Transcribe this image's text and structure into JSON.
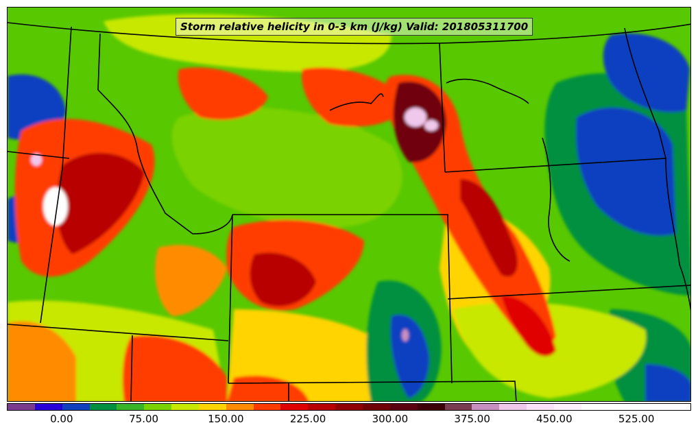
{
  "title": "Storm relative helicity in 0-3 km (J/kg) Valid: 201805311700",
  "colorbar": {
    "colors": [
      "#7a3b8f",
      "#2800d8",
      "#1040c0",
      "#009040",
      "#38b428",
      "#7ad200",
      "#c8e800",
      "#ffd400",
      "#ff8c00",
      "#ff3c00",
      "#e00000",
      "#b80000",
      "#900000",
      "#700008",
      "#5a0010",
      "#3e0008",
      "#7a3c50",
      "#c890c0",
      "#f0c8ec",
      "#fbe2f8",
      "#fff0fc",
      "#ffffff",
      "#ffffff",
      "#ffffff",
      "#ffffff"
    ],
    "labels": [
      "0.00",
      "75.00",
      "150.00",
      "225.00",
      "300.00",
      "375.00",
      "450.00",
      "525.00"
    ],
    "label_values": [
      0,
      75,
      150,
      225,
      300,
      375,
      450,
      525
    ],
    "min": -50,
    "max": 575
  },
  "map": {
    "background_color": "#58c800",
    "boundary_color": "#000000"
  }
}
